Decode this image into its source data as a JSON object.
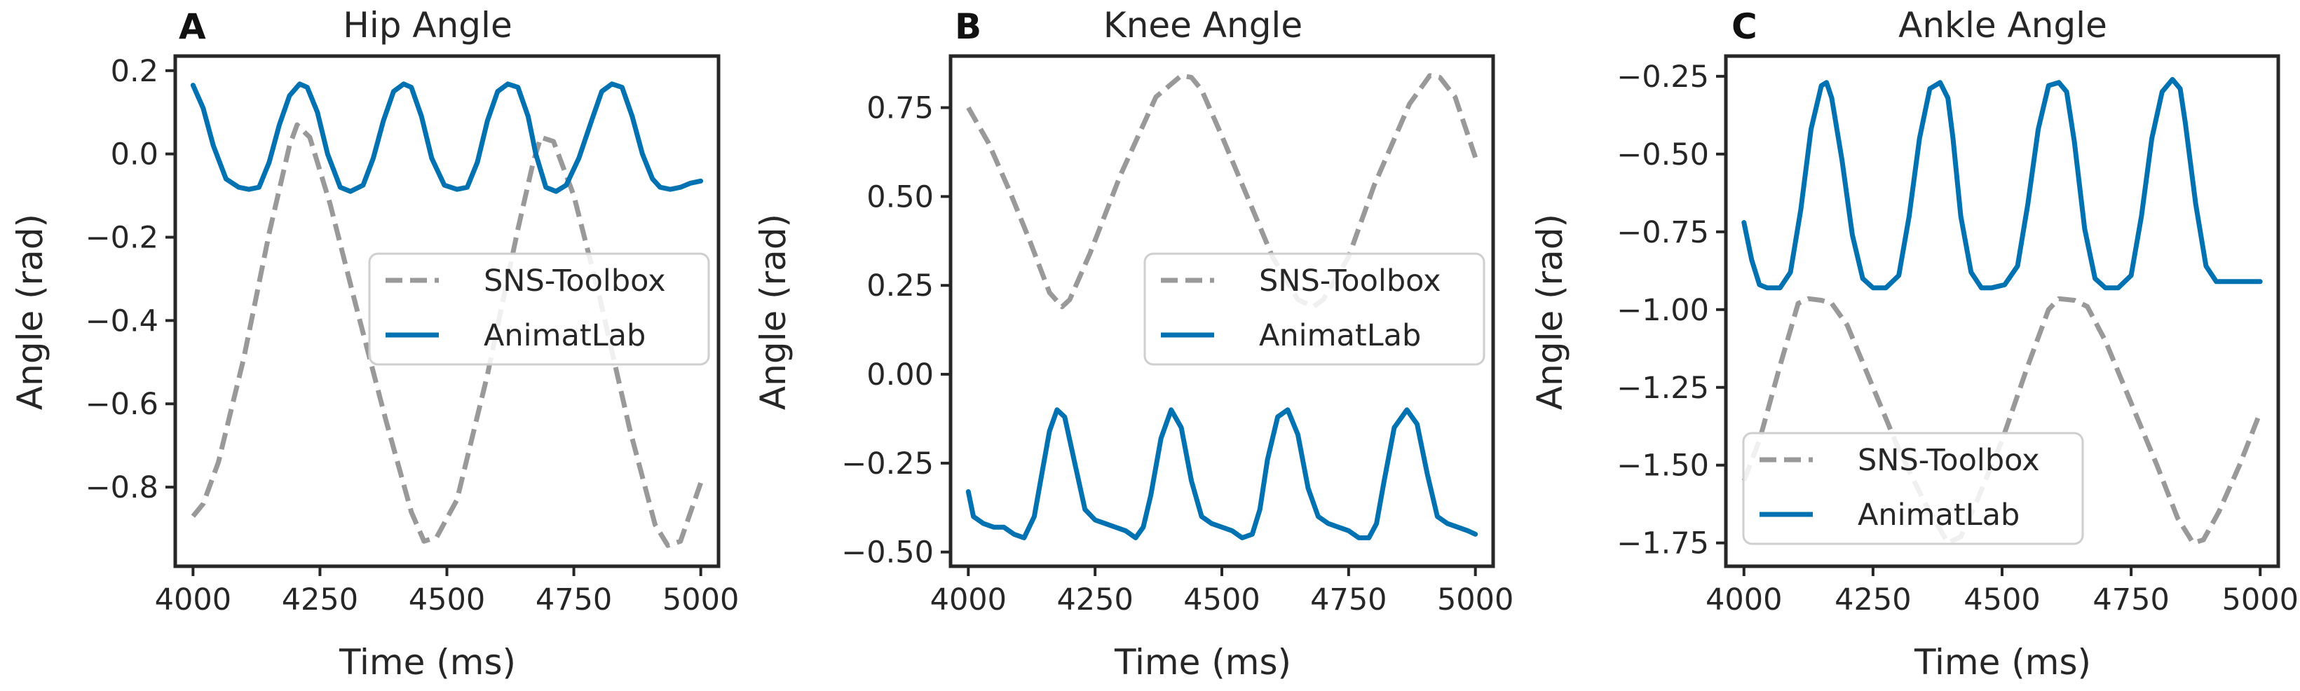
{
  "chart_data": [
    {
      "type": "line",
      "panel_label": "A",
      "title": "Hip Angle",
      "xlabel": "Time (ms)",
      "ylabel": "Angle (rad)",
      "xlim": [
        3965,
        5035
      ],
      "ylim": [
        -0.99,
        0.235
      ],
      "xticks": [
        4000,
        4250,
        4500,
        4750,
        5000
      ],
      "xtick_labels": [
        "4000",
        "4250",
        "4500",
        "4750",
        "5000"
      ],
      "yticks": [
        0.2,
        0.0,
        -0.2,
        -0.4,
        -0.6,
        -0.8
      ],
      "ytick_labels": [
        "0.2",
        "0.0",
        "−0.2",
        "−0.4",
        "−0.6",
        "−0.8"
      ],
      "legend": "center-right",
      "series": [
        {
          "name": "SNS-Toolbox",
          "color": "#999999",
          "dash": true,
          "x": [
            4000,
            4020,
            4050,
            4100,
            4150,
            4190,
            4205,
            4230,
            4270,
            4320,
            4380,
            4430,
            4455,
            4480,
            4520,
            4580,
            4640,
            4670,
            4685,
            4710,
            4750,
            4800,
            4860,
            4910,
            4935,
            4960,
            5000
          ],
          "y": [
            -0.87,
            -0.84,
            -0.74,
            -0.49,
            -0.19,
            0.02,
            0.07,
            0.04,
            -0.12,
            -0.36,
            -0.64,
            -0.86,
            -0.93,
            -0.92,
            -0.83,
            -0.53,
            -0.18,
            -0.02,
            0.04,
            0.03,
            -0.1,
            -0.34,
            -0.66,
            -0.89,
            -0.94,
            -0.93,
            -0.79
          ]
        },
        {
          "name": "AnimatLab",
          "color": "#0072b2",
          "dash": false,
          "x": [
            4000,
            4020,
            4040,
            4065,
            4090,
            4110,
            4130,
            4150,
            4170,
            4190,
            4210,
            4225,
            4245,
            4265,
            4290,
            4310,
            4335,
            4355,
            4375,
            4395,
            4415,
            4430,
            4450,
            4470,
            4495,
            4520,
            4540,
            4560,
            4580,
            4600,
            4620,
            4640,
            4660,
            4675,
            4695,
            4715,
            4735,
            4760,
            4785,
            4805,
            4825,
            4845,
            4865,
            4885,
            4905,
            4920,
            4940,
            4960,
            4980,
            5000
          ],
          "y": [
            0.165,
            0.11,
            0.02,
            -0.06,
            -0.08,
            -0.085,
            -0.08,
            -0.02,
            0.07,
            0.14,
            0.168,
            0.16,
            0.1,
            0.0,
            -0.08,
            -0.09,
            -0.075,
            -0.01,
            0.08,
            0.15,
            0.168,
            0.16,
            0.09,
            -0.01,
            -0.075,
            -0.085,
            -0.08,
            -0.02,
            0.08,
            0.15,
            0.168,
            0.16,
            0.09,
            0.0,
            -0.08,
            -0.09,
            -0.075,
            -0.01,
            0.08,
            0.15,
            0.168,
            0.16,
            0.09,
            0.0,
            -0.06,
            -0.08,
            -0.085,
            -0.08,
            -0.07,
            -0.065
          ]
        }
      ]
    },
    {
      "type": "line",
      "panel_label": "B",
      "title": "Knee Angle",
      "xlabel": "Time (ms)",
      "ylabel": "Angle (rad)",
      "xlim": [
        3965,
        5035
      ],
      "ylim": [
        -0.54,
        0.895
      ],
      "xticks": [
        4000,
        4250,
        4500,
        4750,
        5000
      ],
      "xtick_labels": [
        "4000",
        "4250",
        "4500",
        "4750",
        "5000"
      ],
      "yticks": [
        0.75,
        0.5,
        0.25,
        0.0,
        -0.25,
        -0.5
      ],
      "ytick_labels": [
        "0.75",
        "0.50",
        "0.25",
        "0.00",
        "−0.25",
        "−0.50"
      ],
      "legend": "center-right",
      "series": [
        {
          "name": "SNS-Toolbox",
          "color": "#999999",
          "dash": true,
          "x": [
            4000,
            4040,
            4080,
            4120,
            4160,
            4185,
            4200,
            4240,
            4300,
            4370,
            4420,
            4440,
            4460,
            4500,
            4550,
            4600,
            4650,
            4680,
            4700,
            4750,
            4800,
            4870,
            4910,
            4930,
            4960,
            5000
          ],
          "y": [
            0.75,
            0.65,
            0.52,
            0.38,
            0.23,
            0.19,
            0.21,
            0.34,
            0.56,
            0.78,
            0.84,
            0.835,
            0.8,
            0.67,
            0.5,
            0.33,
            0.21,
            0.19,
            0.21,
            0.33,
            0.53,
            0.76,
            0.84,
            0.835,
            0.78,
            0.61
          ]
        },
        {
          "name": "AnimatLab",
          "color": "#0072b2",
          "dash": false,
          "x": [
            4000,
            4010,
            4030,
            4050,
            4070,
            4090,
            4110,
            4130,
            4145,
            4160,
            4175,
            4190,
            4210,
            4230,
            4250,
            4270,
            4290,
            4310,
            4330,
            4345,
            4360,
            4380,
            4400,
            4420,
            4440,
            4460,
            4480,
            4500,
            4520,
            4540,
            4560,
            4575,
            4590,
            4610,
            4630,
            4650,
            4670,
            4690,
            4710,
            4730,
            4750,
            4770,
            4790,
            4805,
            4820,
            4840,
            4865,
            4885,
            4905,
            4925,
            4945,
            4965,
            4985,
            5000
          ],
          "y": [
            -0.33,
            -0.4,
            -0.42,
            -0.43,
            -0.43,
            -0.45,
            -0.46,
            -0.4,
            -0.28,
            -0.16,
            -0.1,
            -0.12,
            -0.25,
            -0.38,
            -0.41,
            -0.42,
            -0.43,
            -0.44,
            -0.46,
            -0.43,
            -0.34,
            -0.18,
            -0.1,
            -0.15,
            -0.3,
            -0.4,
            -0.42,
            -0.43,
            -0.44,
            -0.46,
            -0.45,
            -0.38,
            -0.24,
            -0.12,
            -0.1,
            -0.17,
            -0.32,
            -0.4,
            -0.42,
            -0.43,
            -0.44,
            -0.46,
            -0.46,
            -0.42,
            -0.3,
            -0.15,
            -0.1,
            -0.14,
            -0.28,
            -0.4,
            -0.42,
            -0.43,
            -0.44,
            -0.45
          ]
        }
      ]
    },
    {
      "type": "line",
      "panel_label": "C",
      "title": "Ankle Angle",
      "xlabel": "Time (ms)",
      "ylabel": "Angle (rad)",
      "xlim": [
        3965,
        5035
      ],
      "ylim": [
        -1.825,
        -0.185
      ],
      "xticks": [
        4000,
        4250,
        4500,
        4750,
        5000
      ],
      "xtick_labels": [
        "4000",
        "4250",
        "4500",
        "4750",
        "5000"
      ],
      "yticks": [
        -0.25,
        -0.5,
        -0.75,
        -1.0,
        -1.25,
        -1.5,
        -1.75
      ],
      "ytick_labels": [
        "−0.25",
        "−0.50",
        "−0.75",
        "−1.00",
        "−1.25",
        "−1.50",
        "−1.75"
      ],
      "legend": "lower-left",
      "series": [
        {
          "name": "SNS-Toolbox",
          "color": "#999999",
          "dash": true,
          "x": [
            4000,
            4030,
            4070,
            4105,
            4125,
            4150,
            4170,
            4200,
            4250,
            4300,
            4350,
            4395,
            4420,
            4450,
            4500,
            4550,
            4590,
            4610,
            4640,
            4665,
            4700,
            4750,
            4800,
            4840,
            4870,
            4890,
            4920,
            4960,
            5000
          ],
          "y": [
            -1.55,
            -1.42,
            -1.18,
            -0.98,
            -0.965,
            -0.97,
            -0.98,
            -1.05,
            -1.25,
            -1.45,
            -1.62,
            -1.75,
            -1.73,
            -1.62,
            -1.42,
            -1.18,
            -1.0,
            -0.965,
            -0.97,
            -0.99,
            -1.1,
            -1.3,
            -1.5,
            -1.67,
            -1.75,
            -1.74,
            -1.65,
            -1.5,
            -1.33
          ]
        },
        {
          "name": "AnimatLab",
          "color": "#0072b2",
          "dash": false,
          "x": [
            4000,
            4015,
            4030,
            4045,
            4070,
            4090,
            4110,
            4130,
            4150,
            4160,
            4170,
            4190,
            4210,
            4230,
            4250,
            4275,
            4300,
            4320,
            4340,
            4360,
            4380,
            4395,
            4405,
            4420,
            4440,
            4460,
            4480,
            4505,
            4530,
            4550,
            4570,
            4590,
            4610,
            4625,
            4640,
            4660,
            4680,
            4700,
            4725,
            4750,
            4770,
            4790,
            4810,
            4830,
            4845,
            4855,
            4875,
            4895,
            4915,
            4935,
            4955,
            4975,
            5000
          ],
          "y": [
            -0.72,
            -0.84,
            -0.92,
            -0.93,
            -0.93,
            -0.88,
            -0.68,
            -0.42,
            -0.28,
            -0.27,
            -0.32,
            -0.52,
            -0.76,
            -0.9,
            -0.93,
            -0.93,
            -0.89,
            -0.7,
            -0.45,
            -0.29,
            -0.27,
            -0.32,
            -0.45,
            -0.7,
            -0.88,
            -0.93,
            -0.93,
            -0.92,
            -0.86,
            -0.66,
            -0.42,
            -0.28,
            -0.27,
            -0.3,
            -0.46,
            -0.74,
            -0.9,
            -0.93,
            -0.93,
            -0.89,
            -0.7,
            -0.45,
            -0.3,
            -0.26,
            -0.29,
            -0.4,
            -0.66,
            -0.86,
            -0.91,
            -0.91,
            -0.91,
            -0.91,
            -0.91
          ]
        }
      ]
    }
  ]
}
